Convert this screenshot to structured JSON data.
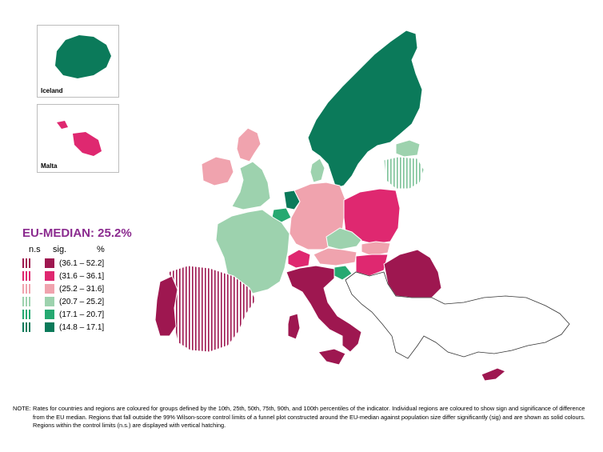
{
  "insets": [
    {
      "label": "Iceland",
      "class": "c6"
    },
    {
      "label": "Malta",
      "class": "c2"
    }
  ],
  "legend": {
    "title": "EU-MEDIAN: 25.2%",
    "col_ns": "n.s",
    "col_sig": "sig.",
    "col_pct": "%",
    "classes": [
      {
        "range": "(36.1 – 52.2]",
        "color": "#9e1750"
      },
      {
        "range": "(31.6 – 36.1]",
        "color": "#df2870"
      },
      {
        "range": "(25.2 – 31.6]",
        "color": "#f0a3ae"
      },
      {
        "range": "(20.7 – 25.2]",
        "color": "#9dd2ae"
      },
      {
        "range": "(17.1 – 20.7]",
        "color": "#26a971"
      },
      {
        "range": "(14.8 – 17.1]",
        "color": "#0b7a5a"
      }
    ]
  },
  "note": {
    "label": "NOTE:",
    "text": "Rates for countries and regions are coloured for groups defined by the 10th, 25th, 50th, 75th, 90th, and 100th percentiles of the indicator. Individual regions are coloured to show sign and significance of difference from the EU median. Regions that fall outside the 99% Wilson-score control limits of a funnel plot constructed around the EU-median against population size differ significantly (sig) and are shown as solid colours. Regions within the control limits (n.s.) are displayed with vertical hatching."
  },
  "regions": [
    {
      "name": "Norway/Sweden/Finland",
      "class": "c6",
      "sig": true
    },
    {
      "name": "Estonia",
      "class": "c4",
      "sig": true
    },
    {
      "name": "Latvia/Lithuania",
      "class": "c4",
      "sig": false
    },
    {
      "name": "Denmark",
      "class": "c4",
      "sig": true
    },
    {
      "name": "Ireland",
      "class": "c3",
      "sig": true
    },
    {
      "name": "Northern UK",
      "class": "c3",
      "sig": true
    },
    {
      "name": "Southern UK",
      "class": "c4",
      "sig": true
    },
    {
      "name": "Netherlands",
      "class": "c6",
      "sig": true
    },
    {
      "name": "Belgium",
      "class": "c5",
      "sig": true
    },
    {
      "name": "France",
      "class": "c4",
      "sig": true
    },
    {
      "name": "Germany",
      "class": "c3",
      "sig": true
    },
    {
      "name": "Poland",
      "class": "c2",
      "sig": true
    },
    {
      "name": "Czechia",
      "class": "c4",
      "sig": true
    },
    {
      "name": "Slovakia",
      "class": "c3",
      "sig": true
    },
    {
      "name": "Austria",
      "class": "c3",
      "sig": true
    },
    {
      "name": "Switzerland",
      "class": "c2",
      "sig": true
    },
    {
      "name": "Hungary",
      "class": "c2",
      "sig": true
    },
    {
      "name": "Slovenia",
      "class": "c5",
      "sig": true
    },
    {
      "name": "Italy",
      "class": "c1",
      "sig": true
    },
    {
      "name": "Sardinia",
      "class": "c1",
      "sig": true
    },
    {
      "name": "Sicily",
      "class": "c1",
      "sig": true
    },
    {
      "name": "Romania",
      "class": "c1",
      "sig": true
    },
    {
      "name": "Spain",
      "class": "c1",
      "sig": false
    },
    {
      "name": "Portugal",
      "class": "c1",
      "sig": true
    },
    {
      "name": "Cyprus",
      "class": "c1",
      "sig": true
    },
    {
      "name": "Balkans/Greece/Turkey",
      "class": "none",
      "sig": true
    }
  ]
}
